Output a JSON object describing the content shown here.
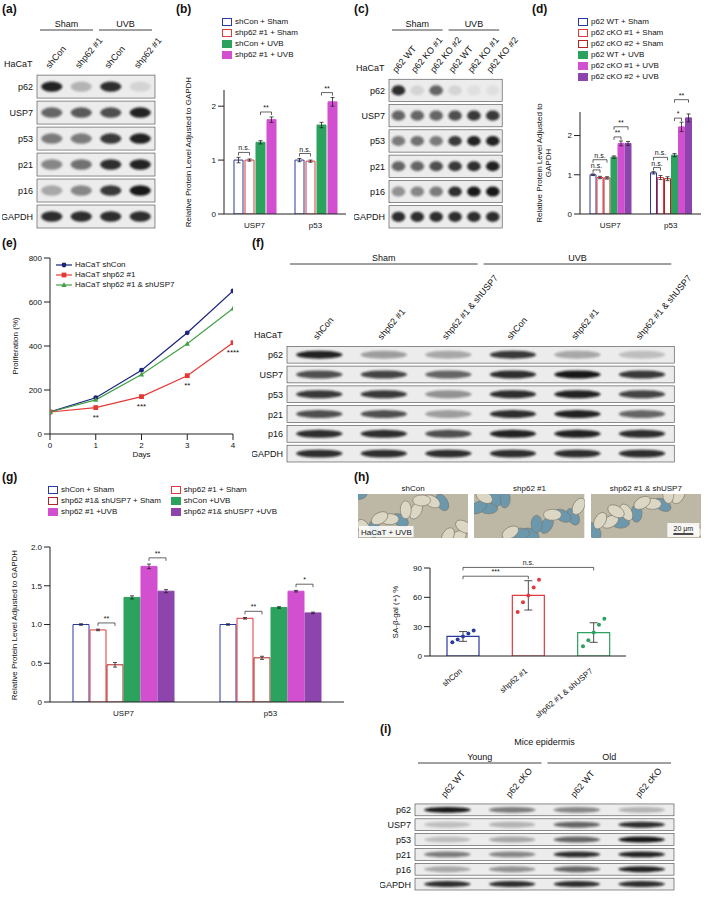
{
  "chart_data": [
    {
      "panel": "(b)",
      "type": "bar",
      "categories": [
        "USP7",
        "p53"
      ],
      "y_label": "Relative Protein Level Adjusted to GAPDH",
      "ylim": [
        0,
        2.3
      ],
      "yticks": [
        0,
        1,
        2
      ],
      "legend": "top",
      "series": [
        {
          "name": "shCon + Sham",
          "color": "#2b3a9e",
          "values": [
            1.0,
            1.0
          ],
          "errors": [
            0.05,
            0.03
          ]
        },
        {
          "name": "shp62 #1 + Sham",
          "color": "#e0393e",
          "values": [
            1.0,
            0.98
          ],
          "errors": [
            0.02,
            0.02
          ]
        },
        {
          "name": "shCon + UVB",
          "color": "#2ca25f",
          "values": [
            1.33,
            1.65
          ],
          "errors": [
            0.03,
            0.05
          ]
        },
        {
          "name": "shp62 #1 + UVB",
          "color": "#d24fd0",
          "values": [
            1.75,
            2.08
          ],
          "errors": [
            0.05,
            0.08
          ]
        }
      ],
      "annotations": [
        {
          "category": "USP7",
          "from": "shCon + Sham",
          "to": "shp62 #1 + Sham",
          "text": "n.s."
        },
        {
          "category": "USP7",
          "from": "shCon + UVB",
          "to": "shp62 #1 + UVB",
          "text": "**"
        },
        {
          "category": "p53",
          "from": "shCon + Sham",
          "to": "shp62 #1 + Sham",
          "text": "n.s."
        },
        {
          "category": "p53",
          "from": "shCon + UVB",
          "to": "shp62 #1 + UVB",
          "text": "**"
        }
      ]
    },
    {
      "panel": "(d)",
      "type": "bar",
      "categories": [
        "USP7",
        "p53"
      ],
      "y_label": "Relative Protein Level Adjusted to GAPDH",
      "ylim": [
        0,
        2.6
      ],
      "yticks": [
        0,
        1,
        2
      ],
      "legend": "top",
      "series": [
        {
          "name": "p62 WT + Sham",
          "color": "#2b3a9e",
          "values": [
            1.0,
            1.05
          ],
          "errors": [
            0.02,
            0.03
          ]
        },
        {
          "name": "p62 cKO #1 + Sham",
          "color": "#e0393e",
          "values": [
            0.93,
            0.93
          ],
          "errors": [
            0.03,
            0.05
          ]
        },
        {
          "name": "p62 cKO #2 + Sham",
          "color": "#b22222",
          "values": [
            0.92,
            0.9
          ],
          "errors": [
            0.03,
            0.05
          ]
        },
        {
          "name": "p62 WT + UVB",
          "color": "#2ca25f",
          "values": [
            1.45,
            1.5
          ],
          "errors": [
            0.03,
            0.04
          ]
        },
        {
          "name": "p62 cKO #1 + UVB",
          "color": "#d24fd0",
          "values": [
            1.8,
            2.22
          ],
          "errors": [
            0.06,
            0.12
          ]
        },
        {
          "name": "p62 cKO #2 + UVB",
          "color": "#8e44ad",
          "values": [
            1.8,
            2.45
          ],
          "errors": [
            0.05,
            0.1
          ]
        }
      ],
      "annotations": [
        {
          "category": "USP7",
          "from": "p62 WT + Sham",
          "to": "p62 cKO #1 + Sham",
          "text": "n.s."
        },
        {
          "category": "USP7",
          "from": "p62 WT + Sham",
          "to": "p62 cKO #2 + Sham",
          "text": "n.s."
        },
        {
          "category": "USP7",
          "from": "p62 WT + UVB",
          "to": "p62 cKO #1 + UVB",
          "text": "**"
        },
        {
          "category": "USP7",
          "from": "p62 WT + UVB",
          "to": "p62 cKO #2 + UVB",
          "text": "**"
        },
        {
          "category": "p53",
          "from": "p62 WT + Sham",
          "to": "p62 cKO #1 + Sham",
          "text": "n.s."
        },
        {
          "category": "p53",
          "from": "p62 WT + Sham",
          "to": "p62 cKO #2 + Sham",
          "text": "n.s."
        },
        {
          "category": "p53",
          "from": "p62 WT + UVB",
          "to": "p62 cKO #1 + UVB",
          "text": "*"
        },
        {
          "category": "p53",
          "from": "p62 WT + UVB",
          "to": "p62 cKO #2 + UVB",
          "text": "**"
        }
      ]
    },
    {
      "panel": "(e)",
      "type": "line",
      "x": [
        0,
        1,
        2,
        3,
        4
      ],
      "xlim": [
        0,
        4
      ],
      "xticks": [
        0,
        1,
        2,
        3,
        4
      ],
      "ylim": [
        0,
        800
      ],
      "yticks": [
        0,
        200,
        400,
        600,
        800
      ],
      "x_label": "Days",
      "y_label": "Proliferation (%)",
      "legend": "upper left",
      "series": [
        {
          "name": "HaCaT shCon",
          "color": "#1a237e",
          "marker": "circle",
          "values": [
            100,
            165,
            290,
            460,
            650
          ]
        },
        {
          "name": "HaCaT shp62 #1",
          "color": "#e53935",
          "marker": "square",
          "values": [
            100,
            120,
            170,
            265,
            415
          ]
        },
        {
          "name": "HaCaT shp62 #1 & shUSP7",
          "color": "#43a047",
          "marker": "triangle",
          "values": [
            100,
            155,
            270,
            410,
            570
          ]
        }
      ],
      "annotations": [
        {
          "series": "HaCaT shp62 #1",
          "x": 1,
          "text": "**"
        },
        {
          "series": "HaCaT shp62 #1",
          "x": 2,
          "text": "***"
        },
        {
          "series": "HaCaT shp62 #1",
          "x": 3,
          "text": "**"
        },
        {
          "series": "HaCaT shp62 #1",
          "x": 4,
          "text": "****"
        }
      ]
    },
    {
      "panel": "(g)",
      "type": "bar",
      "categories": [
        "USP7",
        "p53"
      ],
      "y_label": "Relative Protein Level Adjusted to GAPDH",
      "ylim": [
        0,
        2
      ],
      "yticks": [
        0,
        0.5,
        {
          "value": 1,
          "label": "1.0"
        },
        1.5,
        {
          "value": 2,
          "label": "2.0"
        }
      ],
      "legend": "top",
      "series": [
        {
          "name": "shCon + Sham",
          "color": "#2b3a9e",
          "values": [
            1.0,
            1.0
          ],
          "errors": [
            0.01,
            0.01
          ]
        },
        {
          "name": "shp62 #1 + Sham",
          "color": "#e0393e",
          "values": [
            0.93,
            1.08
          ],
          "errors": [
            0.01,
            0.01
          ]
        },
        {
          "name": "shp62 #1& shUSP7 + Sham",
          "color": "#b22222",
          "values": [
            0.48,
            0.57
          ],
          "errors": [
            0.03,
            0.02
          ]
        },
        {
          "name": "shCon +UVB",
          "color": "#2ca25f",
          "values": [
            1.35,
            1.22
          ],
          "errors": [
            0.02,
            0.01
          ]
        },
        {
          "name": "shp62 #1 +UVB",
          "color": "#d24fd0",
          "values": [
            1.75,
            1.43
          ],
          "errors": [
            0.03,
            0.01
          ]
        },
        {
          "name": "shp62 #1& shUSP7 +UVB",
          "color": "#8e44ad",
          "values": [
            1.43,
            1.15
          ],
          "errors": [
            0.02,
            0.01
          ]
        }
      ],
      "annotations": [
        {
          "category": "USP7",
          "from": "shp62 #1 + Sham",
          "to": "shp62 #1& shUSP7 + Sham",
          "text": "**"
        },
        {
          "category": "USP7",
          "from": "shp62 #1 +UVB",
          "to": "shp62 #1& shUSP7 +UVB",
          "text": "**"
        },
        {
          "category": "p53",
          "from": "shp62 #1 + Sham",
          "to": "shp62 #1& shUSP7 + Sham",
          "text": "**"
        },
        {
          "category": "p53",
          "from": "shp62 #1 +UVB",
          "to": "shp62 #1& shUSP7 +UVB",
          "text": "*"
        }
      ]
    },
    {
      "panel": "(h)",
      "type": "bar",
      "categories": [
        "shCon",
        "shp62 #1",
        "shp62 #1 & shUSP7"
      ],
      "values": [
        20,
        62,
        24
      ],
      "errors": [
        5,
        15,
        10
      ],
      "points": [
        [
          14,
          17,
          20,
          23,
          26
        ],
        [
          45,
          55,
          62,
          70,
          78
        ],
        [
          10,
          16,
          24,
          32,
          38
        ]
      ],
      "colors": [
        "#2b3a9e",
        "#e0393e",
        "#2ca25f"
      ],
      "ylim": [
        0,
        90
      ],
      "yticks": [
        0,
        30,
        60,
        90
      ],
      "y_label": "SA-β-gal (+) %",
      "annotations": [
        {
          "from": "shCon",
          "to": "shp62 #1",
          "text": "***"
        },
        {
          "from": "shCon",
          "to": "shp62 #1 & shUSP7",
          "text": "n.s."
        }
      ]
    }
  ],
  "micrographs": {
    "captions": [
      "shCon",
      "shp62 #1",
      "shp62 #1 & shUSP7"
    ],
    "overlay": "HaCaT + UVB",
    "scale_bar": "20 μm"
  },
  "blots": [
    {
      "panel": "(a)",
      "cell_label": "HaCaT",
      "groups": [
        {
          "name": "Sham",
          "lanes": [
            "shCon",
            "shp62 #1"
          ]
        },
        {
          "name": "UVB",
          "lanes": [
            "shCon",
            "shp62 #1"
          ]
        }
      ],
      "rows": [
        {
          "name": "p62",
          "intensity": [
            0.9,
            0.25,
            0.85,
            0.1
          ]
        },
        {
          "name": "USP7",
          "intensity": [
            0.6,
            0.65,
            0.7,
            0.9
          ]
        },
        {
          "name": "p53",
          "intensity": [
            0.5,
            0.5,
            0.8,
            0.9
          ]
        },
        {
          "name": "p21",
          "intensity": [
            0.45,
            0.55,
            0.85,
            0.9
          ]
        },
        {
          "name": "p16",
          "intensity": [
            0.3,
            0.45,
            0.8,
            0.95
          ]
        },
        {
          "name": "GAPDH",
          "intensity": [
            0.85,
            0.85,
            0.85,
            0.85
          ]
        }
      ]
    },
    {
      "panel": "(c)",
      "cell_label": "HaCaT",
      "groups": [
        {
          "name": "Sham",
          "lanes": [
            "p62 WT",
            "p62 KO #1",
            "p62 KO #2"
          ]
        },
        {
          "name": "UVB",
          "lanes": [
            "p62 WT",
            "p62 KO #1",
            "p62 KO #2"
          ]
        }
      ],
      "rows": [
        {
          "name": "p62",
          "intensity": [
            0.85,
            0.1,
            0.6,
            0.1,
            0.05,
            0.05
          ]
        },
        {
          "name": "USP7",
          "intensity": [
            0.6,
            0.6,
            0.6,
            0.7,
            0.8,
            0.8
          ]
        },
        {
          "name": "p53",
          "intensity": [
            0.5,
            0.55,
            0.5,
            0.8,
            0.9,
            0.9
          ]
        },
        {
          "name": "p21",
          "intensity": [
            0.6,
            0.6,
            0.7,
            0.8,
            0.85,
            0.9
          ]
        },
        {
          "name": "p16",
          "intensity": [
            0.4,
            0.45,
            0.5,
            0.85,
            0.95,
            0.95
          ]
        },
        {
          "name": "GAPDH",
          "intensity": [
            0.85,
            0.85,
            0.85,
            0.85,
            0.85,
            0.85
          ]
        }
      ]
    },
    {
      "panel": "(f)",
      "cell_label": "HaCaT",
      "groups": [
        {
          "name": "Sham",
          "lanes": [
            "shCon",
            "shp62 #1",
            "shp62 #1 & shUSP7"
          ]
        },
        {
          "name": "UVB",
          "lanes": [
            "shCon",
            "shp62 #1",
            "shp62 #1 & shUSP7"
          ]
        }
      ],
      "rows": [
        {
          "name": "p62",
          "intensity": [
            0.9,
            0.35,
            0.3,
            0.8,
            0.3,
            0.2
          ]
        },
        {
          "name": "USP7",
          "intensity": [
            0.7,
            0.75,
            0.6,
            0.85,
            0.95,
            0.8
          ]
        },
        {
          "name": "p53",
          "intensity": [
            0.8,
            0.8,
            0.4,
            0.85,
            0.9,
            0.75
          ]
        },
        {
          "name": "p21",
          "intensity": [
            0.7,
            0.7,
            0.35,
            0.85,
            0.9,
            0.6
          ]
        },
        {
          "name": "p16",
          "intensity": [
            0.85,
            0.85,
            0.7,
            0.9,
            0.9,
            0.85
          ]
        },
        {
          "name": "GAPDH",
          "intensity": [
            0.85,
            0.85,
            0.85,
            0.85,
            0.85,
            0.85
          ]
        }
      ]
    },
    {
      "panel": "(i)",
      "cell_label": "Mice epidermis",
      "groups": [
        {
          "name": "Young",
          "lanes": [
            "p62 WT",
            "p62 cKO"
          ]
        },
        {
          "name": "Old",
          "lanes": [
            "p62 WT",
            "p62 cKO"
          ]
        }
      ],
      "rows": [
        {
          "name": "p62",
          "intensity": [
            0.95,
            0.5,
            0.45,
            0.25
          ]
        },
        {
          "name": "USP7",
          "intensity": [
            0.2,
            0.25,
            0.6,
            0.85
          ]
        },
        {
          "name": "p53",
          "intensity": [
            0.2,
            0.3,
            0.6,
            0.95
          ]
        },
        {
          "name": "p21",
          "intensity": [
            0.5,
            0.45,
            0.85,
            0.9
          ]
        },
        {
          "name": "p16",
          "intensity": [
            0.3,
            0.4,
            0.6,
            0.9
          ]
        },
        {
          "name": "GAPDH",
          "intensity": [
            0.85,
            0.85,
            0.85,
            0.85
          ]
        }
      ]
    }
  ]
}
